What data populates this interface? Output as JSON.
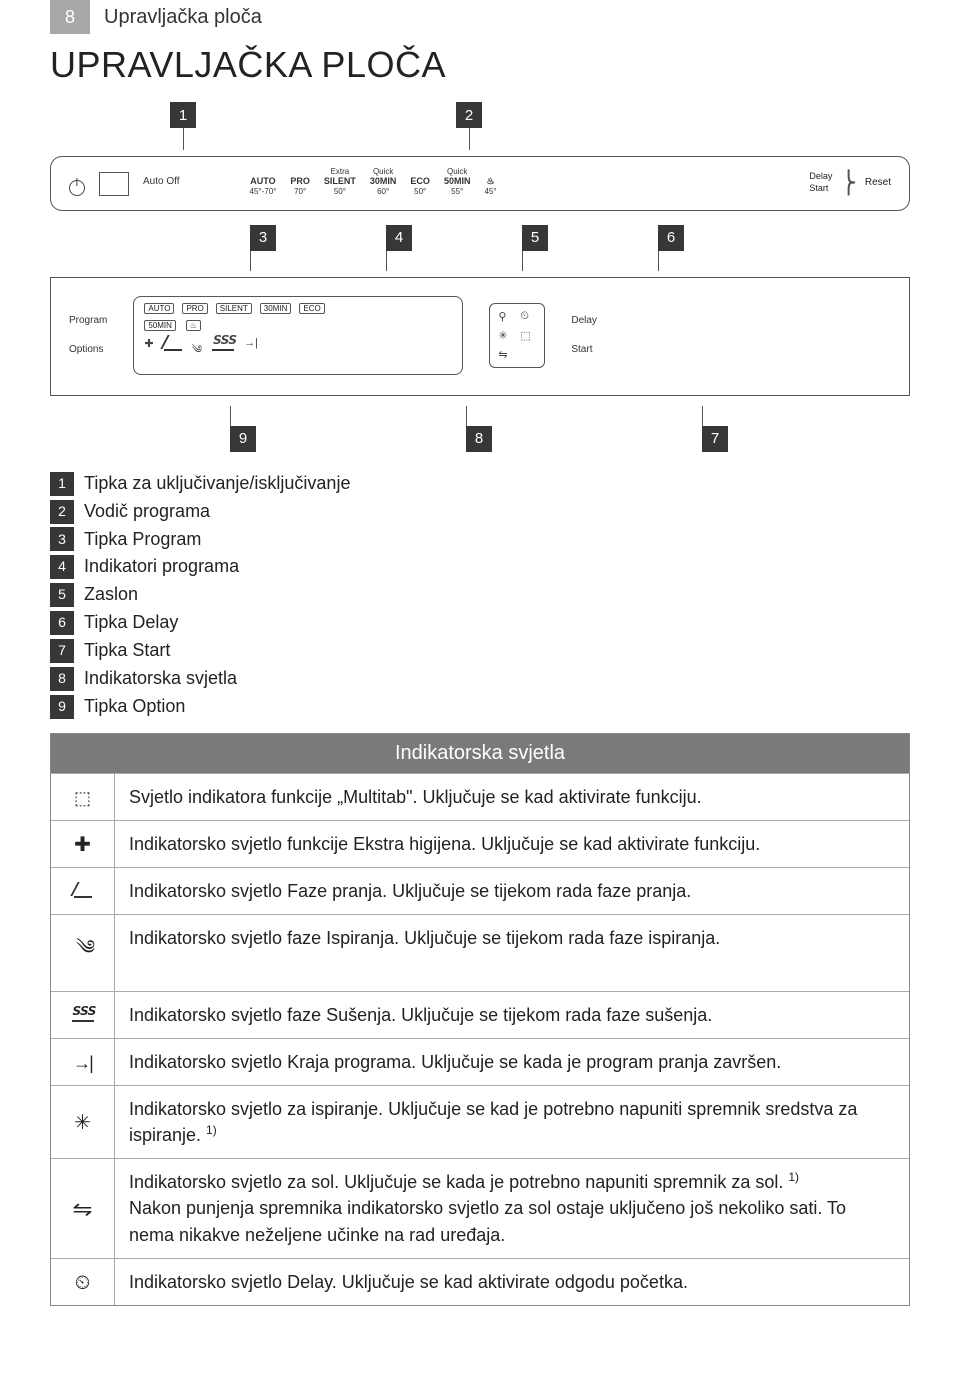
{
  "page_number": "8",
  "breadcrumb": "Upravljačka ploča",
  "title": "UPRAVLJAČKA PLOČA",
  "callouts_top": [
    "1",
    "2"
  ],
  "callouts_mid": [
    "3",
    "4",
    "5",
    "6"
  ],
  "callouts_bot": [
    "9",
    "8",
    "7"
  ],
  "panel1": {
    "auto_off": "Auto Off",
    "programs": [
      {
        "t1": "AUTO",
        "t2": "45°-70°"
      },
      {
        "t1": "PRO",
        "t2": "70°"
      },
      {
        "t0": "Extra",
        "t1": "SILENT",
        "t2": "50°"
      },
      {
        "t0": "Quick",
        "t1": "30MIN",
        "t2": "60°"
      },
      {
        "t1": "ECO",
        "t2": "50°"
      },
      {
        "t0": "Quick",
        "t1": "50MIN",
        "t2": "55°"
      },
      {
        "t1": "♨",
        "t2": "45°"
      }
    ],
    "delay": {
      "top": "Delay",
      "bottom": "Start",
      "reset": "Reset"
    }
  },
  "panel2": {
    "left_top": "Program",
    "left_bot": "Options",
    "pills_row1": [
      "AUTO",
      "PRO",
      "SILENT",
      "30MIN",
      "ECO"
    ],
    "pills_row2": [
      "50MIN",
      "♨"
    ],
    "right_top": "Delay",
    "right_bot": "Start"
  },
  "legend": [
    {
      "n": "1",
      "txt": "Tipka za uključivanje/isključivanje"
    },
    {
      "n": "2",
      "txt": "Vodič programa"
    },
    {
      "n": "3",
      "txt": "Tipka Program"
    },
    {
      "n": "4",
      "txt": "Indikatori programa"
    },
    {
      "n": "5",
      "txt": "Zaslon"
    },
    {
      "n": "6",
      "txt": "Tipka Delay"
    },
    {
      "n": "7",
      "txt": "Tipka Start"
    },
    {
      "n": "8",
      "txt": "Indikatorska svjetla"
    },
    {
      "n": "9",
      "txt": "Tipka Option"
    }
  ],
  "table": {
    "header": "Indikatorska svjetla",
    "rows": [
      {
        "icon": "multi",
        "text": "Svjetlo indikatora funkcije „Multitab\". Uključuje se kad aktivirate funkciju."
      },
      {
        "icon": "plus",
        "text": "Indikatorsko svjetlo funkcije Ekstra higijena. Uključuje se kad aktivirate funkciju."
      },
      {
        "icon": "wash",
        "text": "Indikatorsko svjetlo Faze pranja. Uključuje se tijekom rada faze pranja."
      },
      {
        "icon": "rinse",
        "text": "Indikatorsko svjetlo faze Ispiranja. Uključuje se tijekom rada faze ispiranja."
      },
      {
        "icon": "dry",
        "text": "Indikatorsko svjetlo faze Sušenja. Uključuje se tijekom rada faze sušenja."
      },
      {
        "icon": "end",
        "text": "Indikatorsko svjetlo Kraja programa. Uključuje se kada je program pranja završen."
      },
      {
        "icon": "star",
        "text": "Indikatorsko svjetlo za ispiranje. Uključuje se kad je potrebno napuniti spremnik sredstva za ispiranje. ",
        "sup": "1)"
      },
      {
        "icon": "salt",
        "text": "Indikatorsko svjetlo za sol. Uključuje se kada je potrebno napuniti spremnik za sol. ",
        "sup": "1)",
        "text2": "Nakon punjenja spremnika indikatorsko svjetlo za sol ostaje uključeno još nekoliko sati. To nema nikakve neželjene učinke na rad uređaja."
      },
      {
        "icon": "delay",
        "text": "Indikatorsko svjetlo Delay. Uključuje se kad aktivirate odgodu početka."
      }
    ]
  }
}
